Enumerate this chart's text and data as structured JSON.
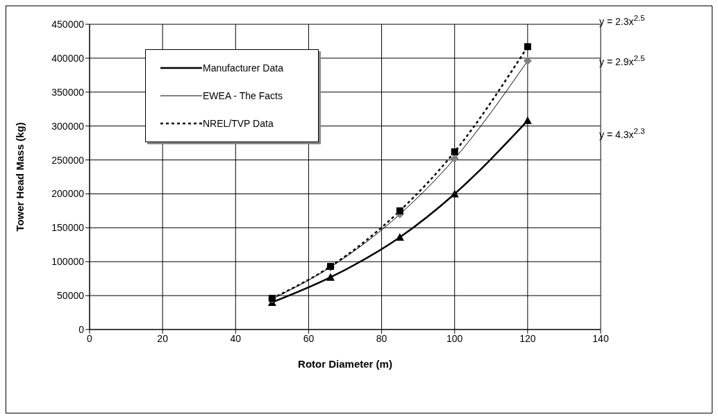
{
  "chart_data": {
    "type": "line",
    "xlabel": "Rotor Diameter (m)",
    "ylabel": "Tower Head Mass (kg)",
    "xlim": [
      0,
      140
    ],
    "xticks": [
      0,
      20,
      40,
      60,
      80,
      100,
      120,
      140
    ],
    "ylim": [
      0,
      450000
    ],
    "yticks": [
      0,
      50000,
      100000,
      150000,
      200000,
      250000,
      300000,
      350000,
      400000,
      450000
    ],
    "grid": true,
    "legend": "top left",
    "series": [
      {
        "name": "Manufacturer Data",
        "color": "#000000",
        "marker": "triangle",
        "line_style": "solid",
        "x": [
          50,
          66,
          85,
          100,
          120
        ],
        "values": [
          40000,
          77000,
          136000,
          200000,
          308000
        ]
      },
      {
        "name": "EWEA - The Facts",
        "color": "#808080",
        "marker": "diamond",
        "line_style": "solid",
        "x": [
          50,
          66,
          85,
          100,
          120
        ],
        "values": [
          45000,
          92000,
          170000,
          252000,
          396000
        ]
      },
      {
        "name": "NREL/TVP Data",
        "color": "#000000",
        "marker": "square",
        "line_style": "dotted",
        "x": [
          50,
          66,
          85,
          100,
          120
        ],
        "values": [
          46000,
          93000,
          175000,
          262000,
          417000
        ]
      }
    ],
    "annotations": [
      "y = 2.3x$^{2.5}$",
      "y = 2.9x$^{2.5}$",
      "y = 4.3x$^{2.3}$"
    ]
  }
}
